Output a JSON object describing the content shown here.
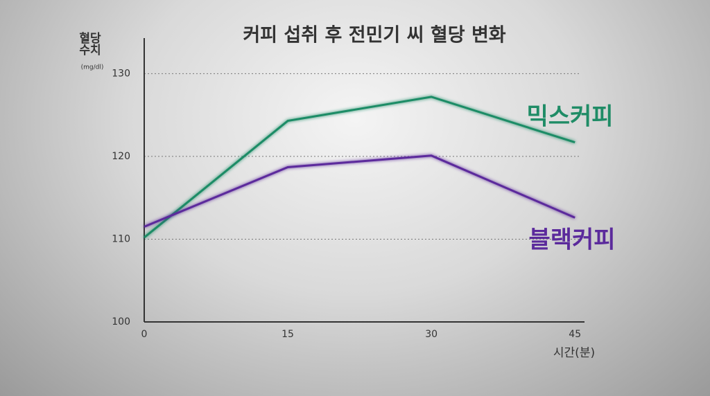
{
  "chart_data": {
    "type": "line",
    "title": "커피 섭취 후 전민기 씨 혈당 변화",
    "ylabel": "혈당 수치",
    "yunit": "(mg/dl)",
    "xlabel": "시간(분)",
    "x": [
      0,
      15,
      30,
      45
    ],
    "series": [
      {
        "name": "믹스커피",
        "color": "#1f8c66",
        "values": [
          110.2,
          124.3,
          127.2,
          121.7
        ]
      },
      {
        "name": "블랙커피",
        "color": "#5b2a9c",
        "values": [
          111.5,
          118.7,
          120.1,
          112.6
        ]
      }
    ],
    "xlim": [
      0,
      46
    ],
    "xticks": [
      0,
      15,
      30,
      45
    ],
    "ylim": [
      100,
      134.3
    ],
    "yticks": [
      100,
      110,
      120,
      130
    ],
    "grid": true
  }
}
